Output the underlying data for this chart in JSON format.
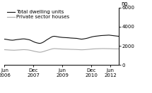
{
  "title": "",
  "ylabel": "no.",
  "legend_entries": [
    "Total dwelling units",
    "Private sector houses"
  ],
  "line_colors": [
    "#111111",
    "#aaaaaa"
  ],
  "ylim": [
    0,
    6000
  ],
  "yticks": [
    0,
    2000,
    4000,
    6000
  ],
  "ytick_labels": [
    "0",
    "2000",
    "4000",
    "6000"
  ],
  "xtick_labels": [
    "Jun\n2006",
    "Dec\n2007",
    "Jun\n2009",
    "Dec\n2010",
    "Jun\n2012"
  ],
  "total_dwelling": [
    2700,
    2680,
    2650,
    2620,
    2600,
    2590,
    2610,
    2640,
    2660,
    2680,
    2700,
    2720,
    2730,
    2710,
    2680,
    2650,
    2600,
    2520,
    2440,
    2370,
    2320,
    2280,
    2260,
    2300,
    2380,
    2480,
    2600,
    2700,
    2800,
    2900,
    2980,
    3000,
    2980,
    2950,
    2920,
    2900,
    2880,
    2870,
    2860,
    2850,
    2840,
    2820,
    2810,
    2800,
    2790,
    2780,
    2750,
    2720,
    2700,
    2720,
    2750,
    2780,
    2820,
    2870,
    2920,
    2960,
    2990,
    3010,
    3030,
    3050,
    3070,
    3080,
    3090,
    3100,
    3110,
    3120,
    3100,
    3080,
    3060,
    3040,
    3020,
    3000
  ],
  "private_sector": [
    1600,
    1590,
    1580,
    1570,
    1560,
    1555,
    1550,
    1560,
    1570,
    1580,
    1590,
    1600,
    1610,
    1600,
    1590,
    1570,
    1540,
    1500,
    1460,
    1420,
    1390,
    1360,
    1340,
    1360,
    1400,
    1450,
    1510,
    1560,
    1610,
    1660,
    1700,
    1720,
    1710,
    1700,
    1690,
    1680,
    1670,
    1665,
    1660,
    1655,
    1650,
    1640,
    1635,
    1630,
    1625,
    1620,
    1610,
    1600,
    1595,
    1600,
    1610,
    1620,
    1635,
    1650,
    1665,
    1680,
    1690,
    1700,
    1705,
    1710,
    1715,
    1720,
    1718,
    1715,
    1712,
    1710,
    1705,
    1700,
    1695,
    1690,
    1688,
    1685
  ],
  "n_points": 72,
  "xtick_positions": [
    0,
    18,
    36,
    54,
    66
  ],
  "background_color": "#ffffff"
}
